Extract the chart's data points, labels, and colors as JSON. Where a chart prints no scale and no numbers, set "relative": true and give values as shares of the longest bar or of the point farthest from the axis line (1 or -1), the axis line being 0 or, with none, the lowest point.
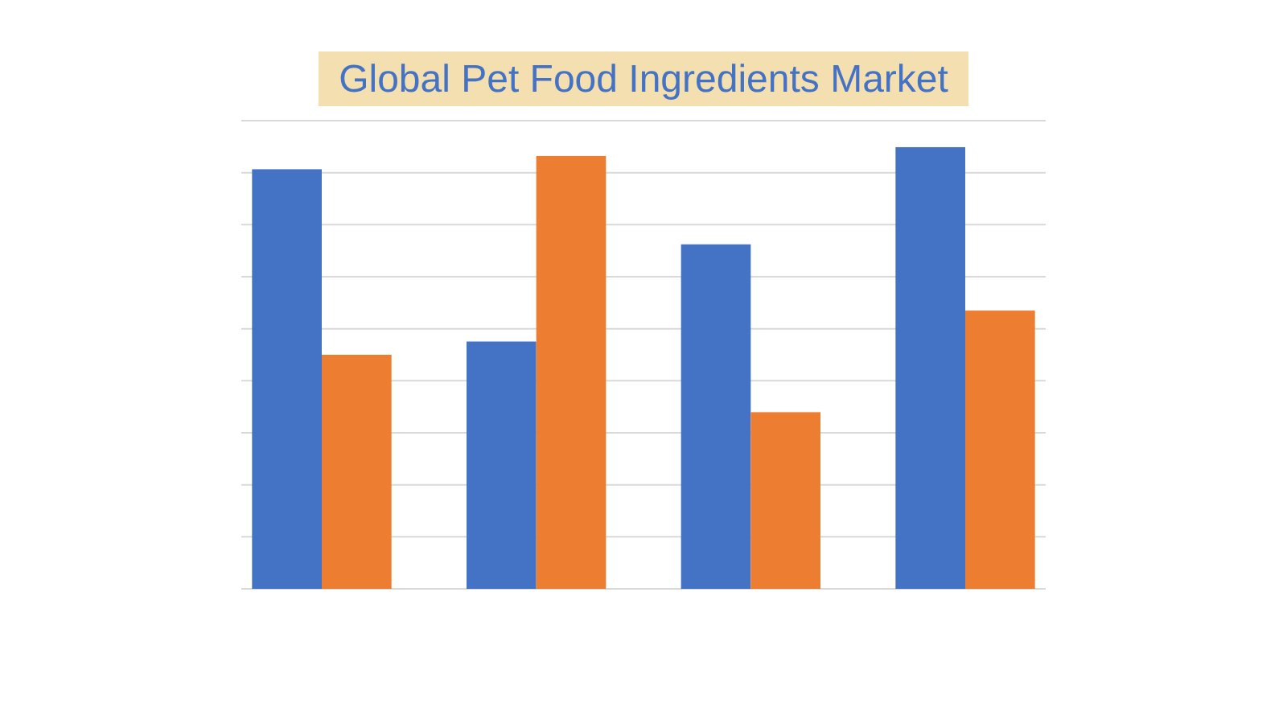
{
  "chart_data": {
    "type": "bar",
    "title": "Global Pet Food Ingredients Market",
    "categories": [
      null,
      null,
      null,
      null
    ],
    "relative": true,
    "grid": true,
    "series": [
      {
        "color": "#4472c4",
        "values": [
          0.95,
          0.56,
          0.78,
          1.0
        ]
      },
      {
        "color": "#ed7d31",
        "values": [
          0.53,
          0.98,
          0.4,
          0.63
        ]
      }
    ]
  }
}
